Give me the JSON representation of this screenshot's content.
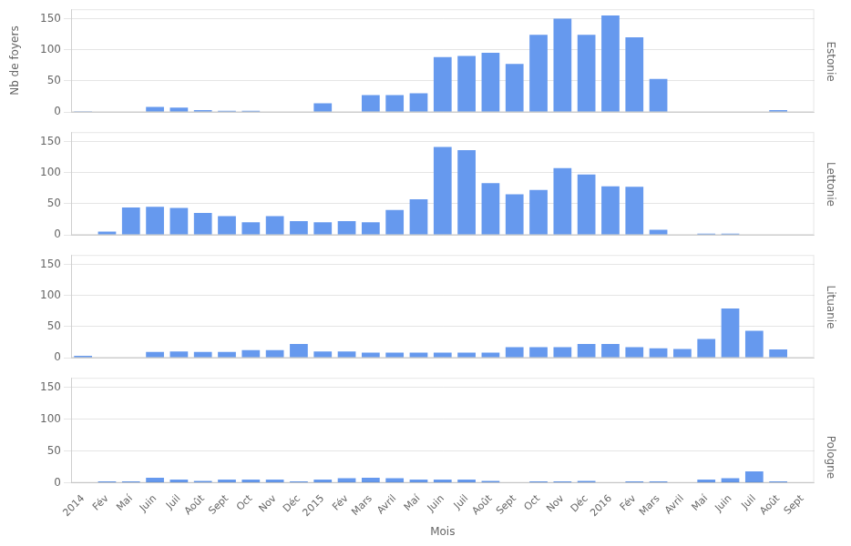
{
  "chart_data": [
    {
      "type": "bar",
      "title": "Estonie",
      "ylabel": "Nb de foyers",
      "categories": [
        "2014",
        "Fév",
        "Maí",
        "Juin",
        "Juil",
        "Août",
        "Sept",
        "Oct",
        "Nov",
        "Déc",
        "2015",
        "Fév",
        "Mars",
        "Avril",
        "Maí",
        "Juin",
        "Juil",
        "Août",
        "Sept",
        "Oct",
        "Nov",
        "Déc",
        "2016",
        "Fév",
        "Mars",
        "Avril",
        "Maí",
        "Juin",
        "Juil",
        "Août",
        "Sept"
      ],
      "values": [
        1,
        0,
        0,
        8,
        7,
        3,
        2,
        2,
        0,
        0,
        14,
        0,
        27,
        27,
        30,
        88,
        90,
        95,
        77,
        124,
        150,
        124,
        155,
        120,
        53,
        0,
        0,
        0,
        0,
        3,
        0
      ],
      "color": "#6699ee",
      "ylim": [
        0,
        165
      ],
      "yticks": [
        0,
        50,
        100,
        150
      ],
      "grid": true,
      "tick_labels": "y"
    },
    {
      "type": "bar",
      "title": "Lettonie",
      "categories": [
        "2014",
        "Fév",
        "Maí",
        "Juin",
        "Juil",
        "Août",
        "Sept",
        "Oct",
        "Nov",
        "Déc",
        "2015",
        "Fév",
        "Mars",
        "Avril",
        "Maí",
        "Juin",
        "Juil",
        "Août",
        "Sept",
        "Oct",
        "Nov",
        "Déc",
        "2016",
        "Fév",
        "Mars",
        "Avril",
        "Maí",
        "Juin",
        "Juil",
        "Août",
        "Sept"
      ],
      "values": [
        0,
        5,
        44,
        45,
        43,
        35,
        30,
        20,
        30,
        22,
        20,
        22,
        20,
        40,
        57,
        141,
        136,
        83,
        65,
        72,
        107,
        97,
        78,
        77,
        8,
        0,
        2,
        2,
        0,
        0,
        0
      ],
      "color": "#6699ee",
      "ylim": [
        0,
        165
      ],
      "yticks": [
        0,
        50,
        100,
        150
      ],
      "grid": true,
      "tick_labels": "y"
    },
    {
      "type": "bar",
      "title": "Lituanie",
      "categories": [
        "2014",
        "Fév",
        "Maí",
        "Juin",
        "Juil",
        "Août",
        "Sept",
        "Oct",
        "Nov",
        "Déc",
        "2015",
        "Fév",
        "Mars",
        "Avril",
        "Maí",
        "Juin",
        "Juil",
        "Août",
        "Sept",
        "Oct",
        "Nov",
        "Déc",
        "2016",
        "Fév",
        "Mars",
        "Avril",
        "Maí",
        "Juin",
        "Juil",
        "Août",
        "Sept"
      ],
      "values": [
        3,
        0,
        0,
        9,
        10,
        9,
        9,
        12,
        12,
        22,
        10,
        10,
        8,
        8,
        8,
        8,
        8,
        8,
        17,
        17,
        17,
        22,
        22,
        17,
        15,
        14,
        30,
        79,
        43,
        13,
        0
      ],
      "color": "#6699ee",
      "ylim": [
        0,
        165
      ],
      "yticks": [
        0,
        50,
        100,
        150
      ],
      "grid": true,
      "tick_labels": "y"
    },
    {
      "type": "bar",
      "title": "Pologne",
      "xlabel": "Mois",
      "categories": [
        "2014",
        "Fév",
        "Maí",
        "Juin",
        "Juil",
        "Août",
        "Sept",
        "Oct",
        "Nov",
        "Déc",
        "2015",
        "Fév",
        "Mars",
        "Avril",
        "Maí",
        "Juin",
        "Juil",
        "Août",
        "Sept",
        "Oct",
        "Nov",
        "Déc",
        "2016",
        "Fév",
        "Mars",
        "Avril",
        "Maí",
        "Juin",
        "Juil",
        "Août",
        "Sept"
      ],
      "values": [
        0,
        2,
        2,
        8,
        5,
        3,
        5,
        5,
        5,
        2,
        5,
        7,
        8,
        7,
        5,
        5,
        5,
        3,
        0,
        2,
        2,
        3,
        0,
        2,
        2,
        0,
        5,
        7,
        18,
        2,
        0
      ],
      "color": "#6699ee",
      "ylim": [
        0,
        165
      ],
      "yticks": [
        0,
        50,
        100,
        150
      ],
      "grid": true
    }
  ]
}
